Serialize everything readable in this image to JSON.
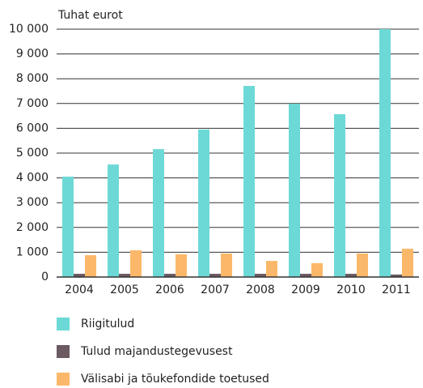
{
  "chart_data": {
    "type": "bar",
    "y_label": "Tuhat eurot",
    "categories": [
      "2004",
      "2005",
      "2006",
      "2007",
      "2008",
      "2009",
      "2010",
      "2011"
    ],
    "series": [
      {
        "name": "Riigitulud",
        "color": "#6dd9d6",
        "values": [
          4050,
          4540,
          5160,
          5950,
          7710,
          6990,
          6570,
          10000
        ]
      },
      {
        "name": "Tulud majandustegevusest",
        "color": "#6b5a62",
        "values": [
          130,
          130,
          130,
          130,
          130,
          130,
          130,
          100
        ]
      },
      {
        "name": "Välisabi ja tõukefondide toetused",
        "color": "#fbb86a",
        "values": [
          880,
          1080,
          915,
          950,
          650,
          560,
          950,
          1140
        ]
      }
    ],
    "ylim": [
      0,
      10000
    ],
    "yticks": [
      0,
      {
        "value": 1000,
        "label": "1 000"
      },
      {
        "value": 2000,
        "label": "2 000"
      },
      {
        "value": 3000,
        "label": "3 000"
      },
      {
        "value": 4000,
        "label": "4 000"
      },
      {
        "value": 5000,
        "label": "5 000"
      },
      {
        "value": 6000,
        "label": "6 000"
      },
      {
        "value": 7000,
        "label": "7 000"
      },
      {
        "value": 8000,
        "label": "8 000"
      },
      {
        "value": 9000,
        "label": "9 000"
      },
      {
        "value": 10000,
        "label": "10 000"
      }
    ],
    "grid": true
  }
}
